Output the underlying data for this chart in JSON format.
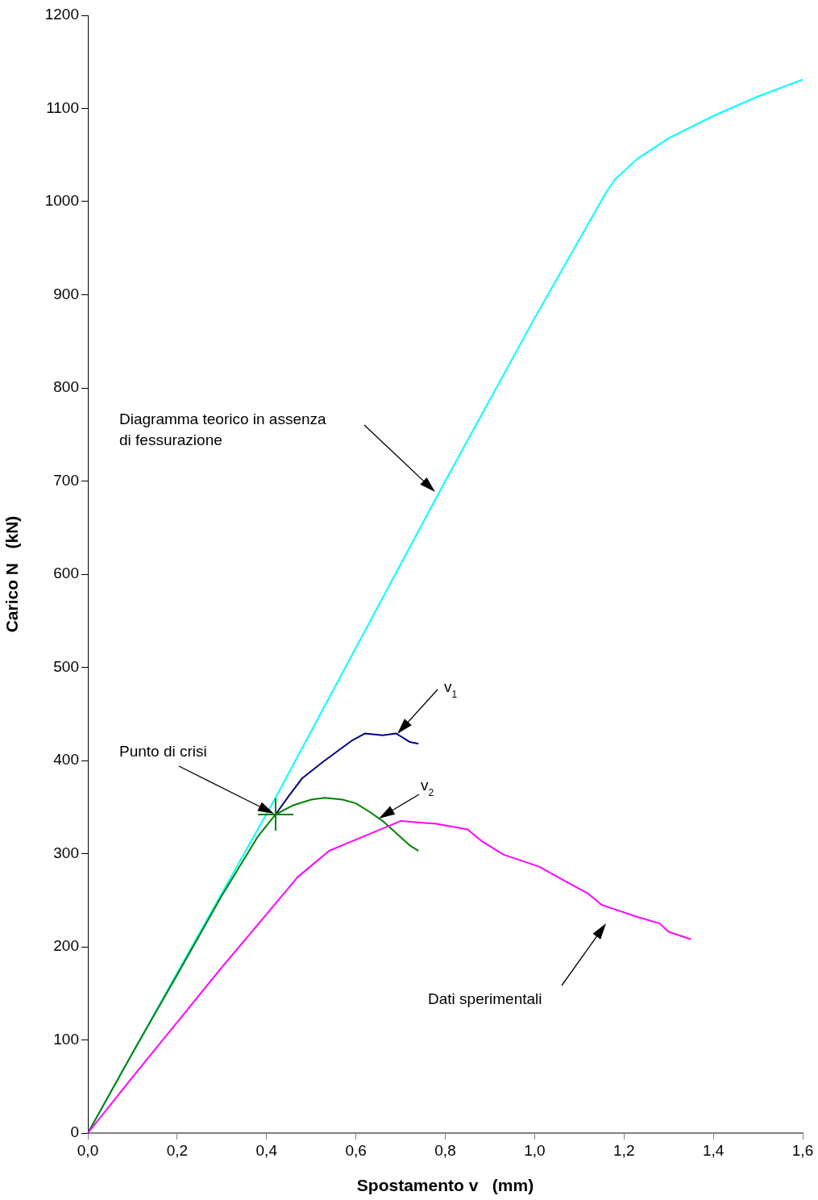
{
  "chart_data": {
    "type": "line",
    "xlabel": "Spostamento v   (mm)",
    "ylabel": "Carico N   (kN)",
    "xlim": [
      0,
      1.6
    ],
    "ylim": [
      0,
      1200
    ],
    "xticks": [
      {
        "value": 0,
        "label": "0,0"
      },
      {
        "value": 0.2,
        "label": "0,2"
      },
      {
        "value": 0.4,
        "label": "0,4"
      },
      {
        "value": 0.6,
        "label": "0,6"
      },
      {
        "value": 0.8,
        "label": "0,8"
      },
      {
        "value": 1.0,
        "label": "1,0"
      },
      {
        "value": 1.2,
        "label": "1,2"
      },
      {
        "value": 1.4,
        "label": "1,4"
      },
      {
        "value": 1.6,
        "label": "1,6"
      }
    ],
    "yticks": [
      0,
      100,
      200,
      300,
      400,
      500,
      600,
      700,
      800,
      900,
      1000,
      1100,
      1200
    ],
    "grid": false,
    "legend": false,
    "line_style": "solid",
    "series": [
      {
        "type": "line",
        "color": "#00ffff",
        "marker": "none",
        "x": [
          0,
          0.2,
          0.42,
          0.8,
          1.0,
          1.16,
          1.18,
          1.23,
          1.3,
          1.4,
          1.5,
          1.6
        ],
        "values": [
          0,
          172,
          360,
          700,
          875,
          1010,
          1024,
          1046,
          1068,
          1092,
          1113,
          1131
        ]
      },
      {
        "type": "line",
        "color": "#000080",
        "marker": "none",
        "x": [
          0.42,
          0.45,
          0.48,
          0.525,
          0.59,
          0.62,
          0.66,
          0.69,
          0.72,
          0.74
        ],
        "values": [
          342,
          362,
          381,
          398,
          421,
          429,
          427,
          429,
          420,
          418
        ]
      },
      {
        "type": "line",
        "color": "#008000",
        "marker": "none",
        "x": [
          0,
          0.1,
          0.2,
          0.3,
          0.38,
          0.42,
          0.46,
          0.5,
          0.53,
          0.57,
          0.6,
          0.63,
          0.66,
          0.69,
          0.72,
          0.74
        ],
        "values": [
          0,
          86,
          170,
          255,
          318,
          342,
          352,
          358,
          360,
          358,
          354,
          345,
          335,
          322,
          309,
          303
        ]
      },
      {
        "type": "line",
        "color": "#ff00ff",
        "marker": "none",
        "x": [
          0,
          0.1,
          0.2,
          0.3,
          0.4,
          0.47,
          0.54,
          0.6,
          0.65,
          0.7,
          0.78,
          0.85,
          0.88,
          0.93,
          1.01,
          1.07,
          1.12,
          1.15,
          1.23,
          1.28,
          1.3,
          1.35
        ],
        "values": [
          0,
          60,
          119,
          178,
          235,
          275,
          303,
          315,
          325,
          335,
          332,
          326,
          314,
          299,
          286,
          270,
          257,
          245,
          232,
          225,
          216,
          208
        ]
      }
    ],
    "annotations": [
      "Diagramma teorico in assenza\ndi fessurazione",
      "v$_{1}$",
      "v$_{2}$",
      "Punto di crisi",
      "Dati sperimentali"
    ]
  }
}
